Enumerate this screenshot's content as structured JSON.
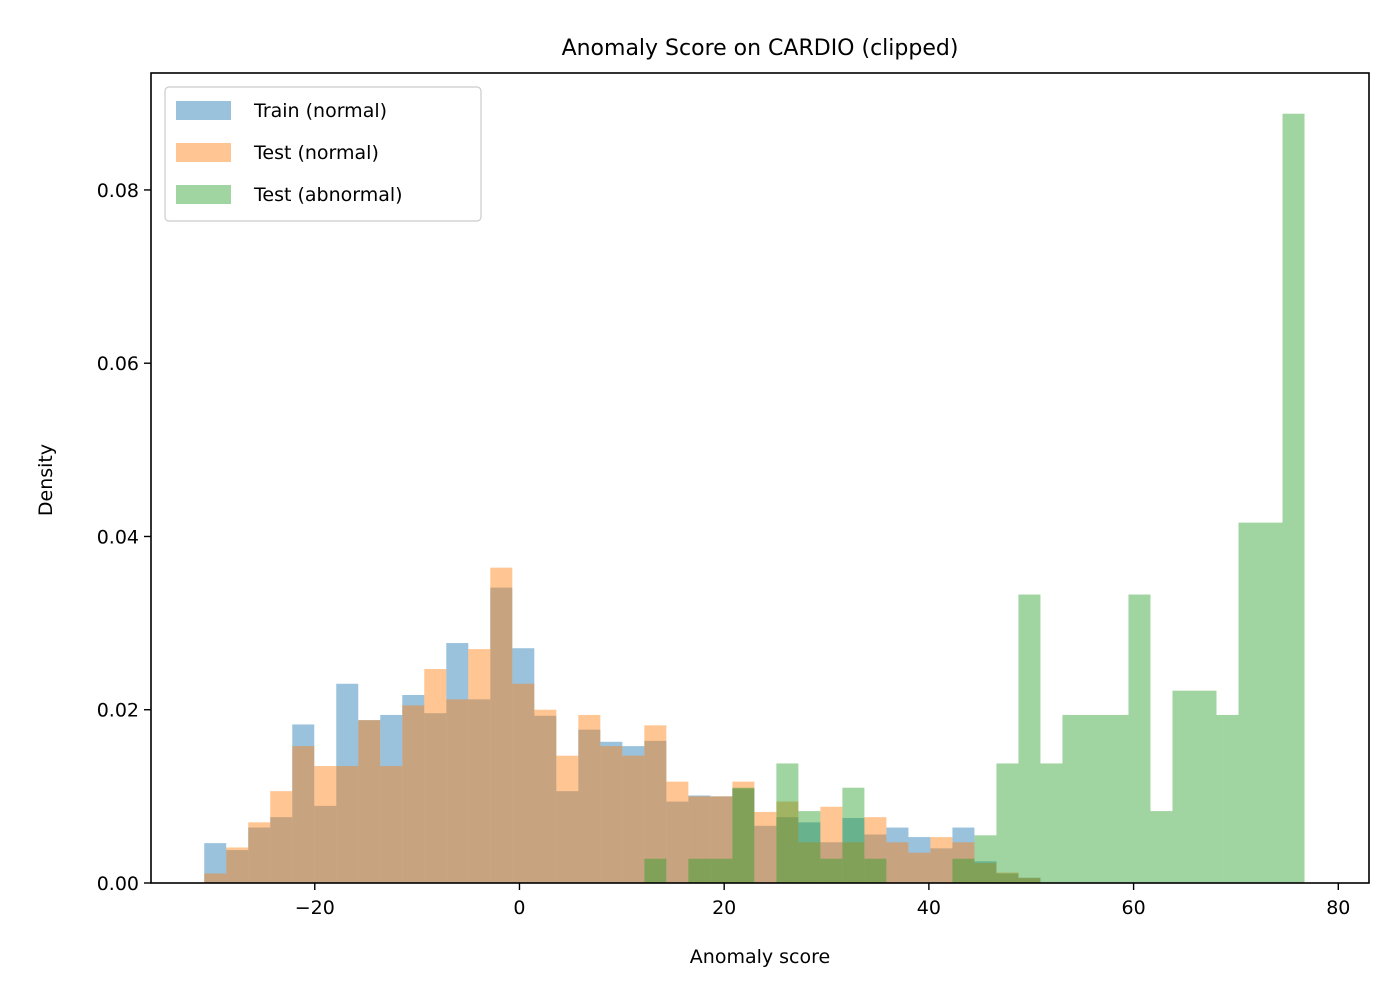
{
  "chart_data": {
    "type": "histogram",
    "title": "Anomaly Score on CARDIO (clipped)",
    "xlabel": "Anomaly score",
    "ylabel": "Density",
    "xlim": [
      -36,
      83
    ],
    "ylim": [
      0,
      0.0935
    ],
    "xticks": [
      -20,
      0,
      20,
      40,
      60,
      80
    ],
    "xtick_labels": [
      "−20",
      "0",
      "20",
      "40",
      "60",
      "80"
    ],
    "yticks": [
      0,
      0.02,
      0.04,
      0.06,
      0.08
    ],
    "ytick_labels": [
      "0.00",
      "0.02",
      "0.04",
      "0.06",
      "0.08"
    ],
    "legend_position": "top-left",
    "grid": false,
    "series": [
      {
        "name": "Train (normal)",
        "color": "#1f77b4",
        "opacity": 0.45,
        "bins": [
          {
            "x0": -30.8,
            "x1": -28.65,
            "y": 0.0046
          },
          {
            "x0": -28.65,
            "x1": -26.5,
            "y": 0.0038
          },
          {
            "x0": -26.5,
            "x1": -24.35,
            "y": 0.0064
          },
          {
            "x0": -24.35,
            "x1": -22.2,
            "y": 0.0076
          },
          {
            "x0": -22.2,
            "x1": -20.05,
            "y": 0.0183
          },
          {
            "x0": -20.05,
            "x1": -17.9,
            "y": 0.0089
          },
          {
            "x0": -17.9,
            "x1": -15.75,
            "y": 0.023
          },
          {
            "x0": -15.75,
            "x1": -13.6,
            "y": 0.0188
          },
          {
            "x0": -13.6,
            "x1": -11.45,
            "y": 0.0194
          },
          {
            "x0": -11.45,
            "x1": -9.3,
            "y": 0.0217
          },
          {
            "x0": -9.3,
            "x1": -7.15,
            "y": 0.0196
          },
          {
            "x0": -7.15,
            "x1": -5.0,
            "y": 0.0277
          },
          {
            "x0": -5.0,
            "x1": -2.85,
            "y": 0.0212
          },
          {
            "x0": -2.85,
            "x1": -0.7,
            "y": 0.0341
          },
          {
            "x0": -0.7,
            "x1": 1.45,
            "y": 0.0271
          },
          {
            "x0": 1.45,
            "x1": 3.6,
            "y": 0.0193
          },
          {
            "x0": 3.6,
            "x1": 5.75,
            "y": 0.0106
          },
          {
            "x0": 5.75,
            "x1": 7.9,
            "y": 0.0177
          },
          {
            "x0": 7.9,
            "x1": 10.05,
            "y": 0.0163
          },
          {
            "x0": 10.05,
            "x1": 12.2,
            "y": 0.0158
          },
          {
            "x0": 12.2,
            "x1": 14.35,
            "y": 0.0164
          },
          {
            "x0": 14.35,
            "x1": 16.5,
            "y": 0.0094
          },
          {
            "x0": 16.5,
            "x1": 18.65,
            "y": 0.0101
          },
          {
            "x0": 18.65,
            "x1": 20.8,
            "y": 0.01
          },
          {
            "x0": 20.8,
            "x1": 22.95,
            "y": 0.0109
          },
          {
            "x0": 22.95,
            "x1": 25.1,
            "y": 0.0066
          },
          {
            "x0": 25.1,
            "x1": 27.25,
            "y": 0.0076
          },
          {
            "x0": 27.25,
            "x1": 29.4,
            "y": 0.007
          },
          {
            "x0": 29.4,
            "x1": 31.55,
            "y": 0.0047
          },
          {
            "x0": 31.55,
            "x1": 33.7,
            "y": 0.0075
          },
          {
            "x0": 33.7,
            "x1": 35.85,
            "y": 0.0056
          },
          {
            "x0": 35.85,
            "x1": 38.0,
            "y": 0.0064
          },
          {
            "x0": 38.0,
            "x1": 40.15,
            "y": 0.0053
          },
          {
            "x0": 40.15,
            "x1": 42.3,
            "y": 0.004
          },
          {
            "x0": 42.3,
            "x1": 44.45,
            "y": 0.0064
          },
          {
            "x0": 44.45,
            "x1": 46.6,
            "y": 0.0025
          },
          {
            "x0": 46.6,
            "x1": 48.75,
            "y": 0.0011
          },
          {
            "x0": 48.75,
            "x1": 50.9,
            "y": 0.0006
          }
        ]
      },
      {
        "name": "Test (normal)",
        "color": "#ff7f0e",
        "opacity": 0.45,
        "bins": [
          {
            "x0": -30.8,
            "x1": -28.65,
            "y": 0.0011
          },
          {
            "x0": -28.65,
            "x1": -26.5,
            "y": 0.0041
          },
          {
            "x0": -26.5,
            "x1": -24.35,
            "y": 0.007
          },
          {
            "x0": -24.35,
            "x1": -22.2,
            "y": 0.0106
          },
          {
            "x0": -22.2,
            "x1": -20.05,
            "y": 0.0158
          },
          {
            "x0": -20.05,
            "x1": -17.9,
            "y": 0.0135
          },
          {
            "x0": -17.9,
            "x1": -15.75,
            "y": 0.0135
          },
          {
            "x0": -15.75,
            "x1": -13.6,
            "y": 0.0188
          },
          {
            "x0": -13.6,
            "x1": -11.45,
            "y": 0.0135
          },
          {
            "x0": -11.45,
            "x1": -9.3,
            "y": 0.0205
          },
          {
            "x0": -9.3,
            "x1": -7.15,
            "y": 0.0247
          },
          {
            "x0": -7.15,
            "x1": -5.0,
            "y": 0.0212
          },
          {
            "x0": -5.0,
            "x1": -2.85,
            "y": 0.027
          },
          {
            "x0": -2.85,
            "x1": -0.7,
            "y": 0.0364
          },
          {
            "x0": -0.7,
            "x1": 1.45,
            "y": 0.023
          },
          {
            "x0": 1.45,
            "x1": 3.6,
            "y": 0.02
          },
          {
            "x0": 3.6,
            "x1": 5.75,
            "y": 0.0147
          },
          {
            "x0": 5.75,
            "x1": 7.9,
            "y": 0.0194
          },
          {
            "x0": 7.9,
            "x1": 10.05,
            "y": 0.0158
          },
          {
            "x0": 10.05,
            "x1": 12.2,
            "y": 0.0147
          },
          {
            "x0": 12.2,
            "x1": 14.35,
            "y": 0.0182
          },
          {
            "x0": 14.35,
            "x1": 16.5,
            "y": 0.0117
          },
          {
            "x0": 16.5,
            "x1": 18.65,
            "y": 0.01
          },
          {
            "x0": 18.65,
            "x1": 20.8,
            "y": 0.01
          },
          {
            "x0": 20.8,
            "x1": 22.95,
            "y": 0.0117
          },
          {
            "x0": 22.95,
            "x1": 25.1,
            "y": 0.0082
          },
          {
            "x0": 25.1,
            "x1": 27.25,
            "y": 0.0094
          },
          {
            "x0": 27.25,
            "x1": 29.4,
            "y": 0.0047
          },
          {
            "x0": 29.4,
            "x1": 31.55,
            "y": 0.0088
          },
          {
            "x0": 31.55,
            "x1": 33.7,
            "y": 0.0047
          },
          {
            "x0": 33.7,
            "x1": 35.85,
            "y": 0.0076
          },
          {
            "x0": 35.85,
            "x1": 38.0,
            "y": 0.0047
          },
          {
            "x0": 38.0,
            "x1": 40.15,
            "y": 0.0035
          },
          {
            "x0": 40.15,
            "x1": 42.3,
            "y": 0.0053
          },
          {
            "x0": 42.3,
            "x1": 44.45,
            "y": 0.0047
          },
          {
            "x0": 44.45,
            "x1": 46.6,
            "y": 0.0023
          },
          {
            "x0": 46.6,
            "x1": 48.75,
            "y": 0.0012
          },
          {
            "x0": 48.75,
            "x1": 50.9,
            "y": 0.0006
          }
        ]
      },
      {
        "name": "Test (abnormal)",
        "color": "#2ca02c",
        "opacity": 0.45,
        "bins": [
          {
            "x0": 12.2,
            "x1": 14.35,
            "y": 0.0028
          },
          {
            "x0": 16.5,
            "x1": 18.65,
            "y": 0.0028
          },
          {
            "x0": 18.65,
            "x1": 20.8,
            "y": 0.0028
          },
          {
            "x0": 20.8,
            "x1": 22.95,
            "y": 0.011
          },
          {
            "x0": 25.1,
            "x1": 27.25,
            "y": 0.0138
          },
          {
            "x0": 27.25,
            "x1": 29.4,
            "y": 0.0083
          },
          {
            "x0": 29.4,
            "x1": 31.55,
            "y": 0.0028
          },
          {
            "x0": 31.55,
            "x1": 33.7,
            "y": 0.011
          },
          {
            "x0": 33.7,
            "x1": 35.85,
            "y": 0.0028
          },
          {
            "x0": 42.3,
            "x1": 44.45,
            "y": 0.0028
          },
          {
            "x0": 44.45,
            "x1": 46.6,
            "y": 0.0055
          },
          {
            "x0": 46.6,
            "x1": 48.75,
            "y": 0.0138
          },
          {
            "x0": 48.75,
            "x1": 50.9,
            "y": 0.0333
          },
          {
            "x0": 50.9,
            "x1": 53.05,
            "y": 0.0138
          },
          {
            "x0": 53.05,
            "x1": 55.2,
            "y": 0.0194
          },
          {
            "x0": 55.2,
            "x1": 57.35,
            "y": 0.0194
          },
          {
            "x0": 57.35,
            "x1": 59.5,
            "y": 0.0194
          },
          {
            "x0": 59.5,
            "x1": 61.65,
            "y": 0.0333
          },
          {
            "x0": 61.65,
            "x1": 63.8,
            "y": 0.0083
          },
          {
            "x0": 63.8,
            "x1": 65.95,
            "y": 0.0222
          },
          {
            "x0": 65.95,
            "x1": 68.1,
            "y": 0.0222
          },
          {
            "x0": 68.1,
            "x1": 70.25,
            "y": 0.0194
          },
          {
            "x0": 70.25,
            "x1": 72.4,
            "y": 0.0416
          },
          {
            "x0": 72.4,
            "x1": 74.55,
            "y": 0.0416
          },
          {
            "x0": 74.55,
            "x1": 76.7,
            "y": 0.0888
          }
        ]
      }
    ]
  }
}
